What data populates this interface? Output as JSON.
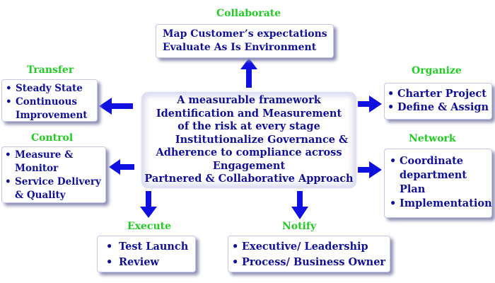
{
  "center": {
    "lines": [
      "A measurable framework",
      "Identification and Measurement",
      "of the risk at every stage",
      "Institutionalize Governance &",
      "Adherence to compliance across",
      "Engagement",
      "Partnered & Collaborative Approach"
    ]
  },
  "collaborate": {
    "title": "Collaborate",
    "lines": [
      "Map Customer’s expectations",
      "Evaluate As Is Environment"
    ]
  },
  "transfer": {
    "title": "Transfer",
    "items": [
      "Steady State",
      "Continuous",
      "Improvement"
    ]
  },
  "control": {
    "title": "Control",
    "items": [
      "Measure &",
      "Monitor",
      "Service Delivery",
      "& Quality"
    ]
  },
  "organize": {
    "title": "Organize",
    "items": [
      "Charter Project",
      "Define & Assign"
    ]
  },
  "network": {
    "title": "Network",
    "items": [
      "Coordinate",
      "department",
      "Plan",
      "Implementation"
    ]
  },
  "execute": {
    "title": "Execute",
    "items": [
      "Test Launch",
      "Review"
    ]
  },
  "notify": {
    "title": "Notify",
    "items": [
      "Executive/ Leadership",
      "Process/ Business Owner"
    ]
  },
  "colors": {
    "title_green": "#22cc22",
    "text_blue": "#10109a",
    "arrow_blue": "#1010e0"
  }
}
